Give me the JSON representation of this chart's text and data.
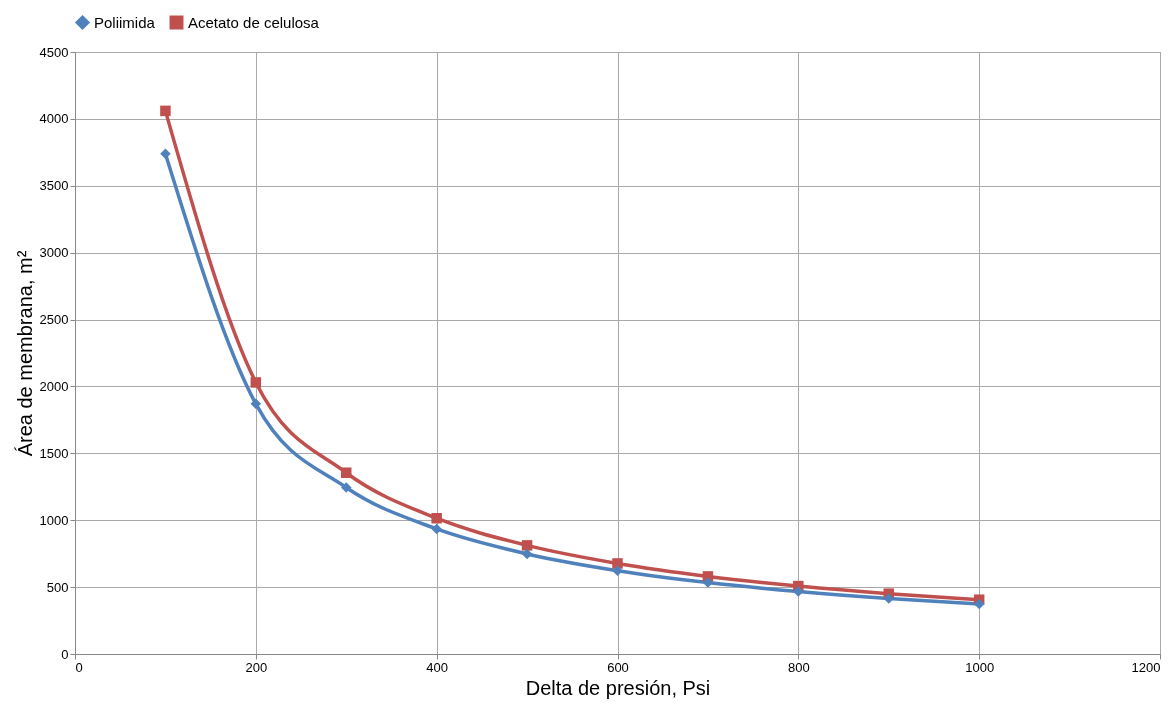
{
  "chart_data": {
    "type": "line",
    "xlabel": "Delta de presión, Psi",
    "ylabel": "Área de membrana, m²",
    "x": [
      100,
      200,
      300,
      400,
      500,
      600,
      700,
      800,
      900,
      1000
    ],
    "series": [
      {
        "name": "Poliimida",
        "color": "#4f81bd",
        "marker": "diamond",
        "values": [
          3740,
          1870,
          1245,
          935,
          748,
          623,
          534,
          467,
          415,
          374
        ]
      },
      {
        "name": "Acetato de celulosa",
        "color": "#c0504d",
        "marker": "square",
        "values": [
          4060,
          2030,
          1355,
          1015,
          812,
          677,
          580,
          508,
          451,
          406
        ]
      }
    ],
    "xlim": [
      0,
      1200
    ],
    "xticks": [
      0,
      200,
      400,
      600,
      800,
      1000,
      1200
    ],
    "ylim": [
      0,
      4500
    ],
    "yticks": [
      0,
      500,
      1000,
      1500,
      2000,
      2500,
      3000,
      3500,
      4000,
      4500
    ],
    "grid": true,
    "legend": "top",
    "line_style": "solid"
  }
}
